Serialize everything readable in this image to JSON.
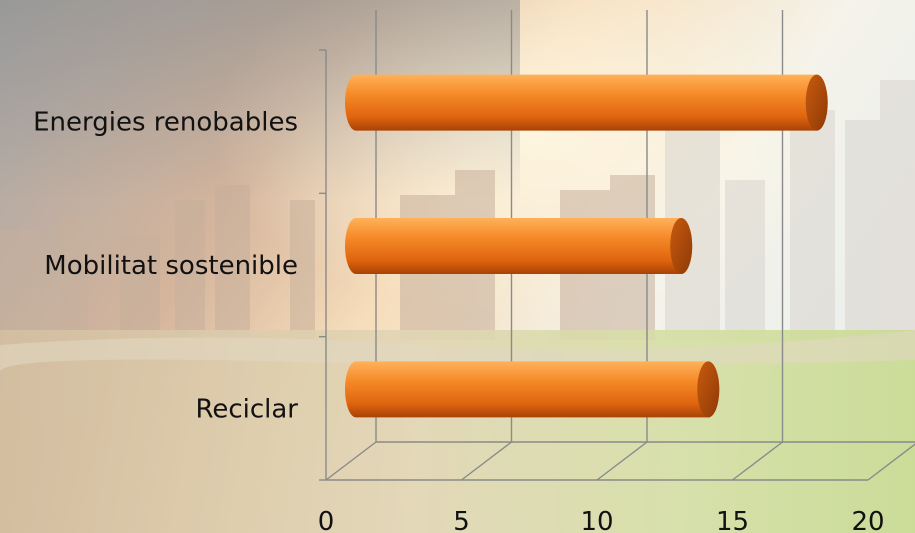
{
  "chart_data": {
    "type": "bar",
    "orientation": "horizontal",
    "style": "3d-cylinder",
    "categories": [
      "Energies renobables",
      "Mobilitat sostenible",
      "Reciclar"
    ],
    "values": [
      17,
      12,
      13
    ],
    "xlim": [
      0,
      20
    ],
    "xticks": [
      "0",
      "5",
      "10",
      "15",
      "20"
    ],
    "grid": true,
    "bar_color": "#f07c1a",
    "bar_dark": "#b84a08",
    "bar_light": "#ffb15a",
    "grid_color": "#8a8a8a",
    "background": "city-pollution-to-green-landscape photo"
  }
}
